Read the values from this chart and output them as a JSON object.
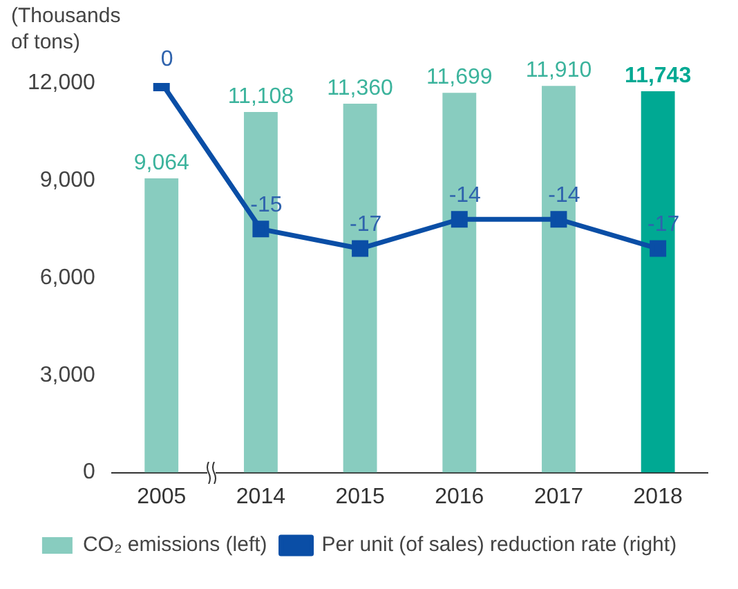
{
  "chart_data": {
    "type": "bar",
    "ylabel": "(Thousands of tons)",
    "categories": [
      "2005",
      "2014",
      "2015",
      "2016",
      "2017",
      "2018"
    ],
    "series": [
      {
        "name": "CO₂ emissions (left)",
        "color": "#88ccbf",
        "colors": [
          "#88ccbf",
          "#88ccbf",
          "#88ccbf",
          "#88ccbf",
          "#88ccbf",
          "#00a993"
        ],
        "values": [
          9064,
          11108,
          11360,
          11699,
          11910,
          11743
        ],
        "value_labels": [
          "9,064",
          "11,108",
          "11,360",
          "11,699",
          "11,910",
          "11,743"
        ]
      },
      {
        "name": "Per unit (of sales) reduction rate (right)",
        "type": "line",
        "axis": "y2",
        "color": "#0a4ea6",
        "values": [
          0,
          -15,
          -17,
          -14,
          -14,
          -17
        ]
      }
    ],
    "ylim": [
      0,
      12000
    ],
    "yticks": [
      0,
      {
        "value": 3000,
        "label": "3,000"
      },
      {
        "value": 6000,
        "label": "6,000"
      },
      {
        "value": 9000,
        "label": "9,000"
      },
      {
        "value": 12000,
        "label": "12,000"
      }
    ],
    "y2lim": [
      -40,
      0
    ],
    "tick_labels": "xy",
    "data_labels": true,
    "grid": false,
    "legend": "bottom",
    "marker": "square",
    "line_style": "solid"
  }
}
